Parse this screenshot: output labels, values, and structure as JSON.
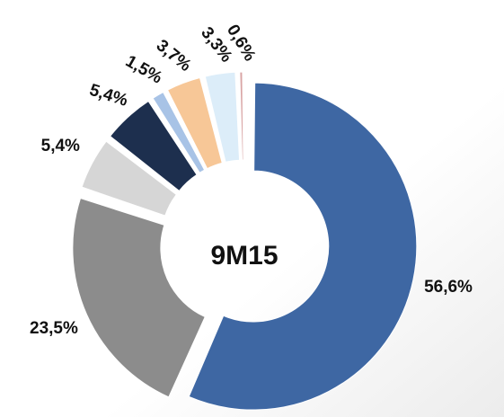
{
  "chart_data": {
    "type": "donut",
    "center_label": "9M15",
    "values": [
      56.6,
      23.5,
      5.4,
      5.4,
      1.5,
      3.7,
      3.3,
      0.6
    ],
    "value_labels": [
      "56,6%",
      "23,5%",
      "5,4%",
      "5,4%",
      "1,5%",
      "3,7%",
      "3,3%",
      "0,6%"
    ],
    "colors": [
      "#3e67a3",
      "#8c8c8c",
      "#d6d6d6",
      "#1d2f4e",
      "#a8c3e6",
      "#f7c797",
      "#dcedf9",
      "#d9a5a5"
    ]
  }
}
